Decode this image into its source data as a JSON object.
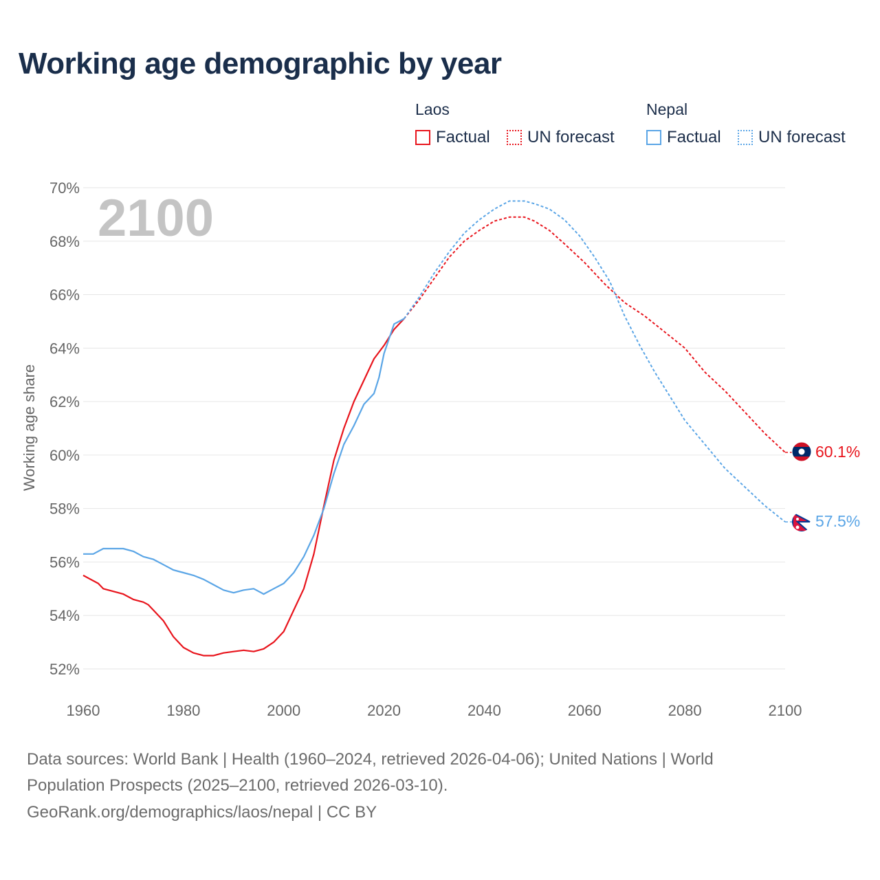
{
  "title": "Working age demographic by year",
  "legend": {
    "groups": [
      {
        "country": "Laos",
        "color": "#e8141c",
        "factual_label": "Factual",
        "forecast_label": "UN forecast"
      },
      {
        "country": "Nepal",
        "color": "#5aa5e6",
        "factual_label": "Factual",
        "forecast_label": "UN forecast"
      }
    ]
  },
  "year_watermark": "2100",
  "chart_data": {
    "type": "line",
    "title": "Working age demographic by year",
    "xlabel": "",
    "ylabel": "Working age share",
    "xlim": [
      1960,
      2100
    ],
    "ylim": [
      52,
      70
    ],
    "x_ticks": [
      "1960",
      "1980",
      "2000",
      "2020",
      "2040",
      "2060",
      "2080",
      "2100"
    ],
    "y_ticks": [
      "52%",
      "54%",
      "56%",
      "58%",
      "60%",
      "62%",
      "64%",
      "66%",
      "68%",
      "70%"
    ],
    "grid": true,
    "factual_range": [
      1960,
      2024
    ],
    "forecast_range": [
      2024,
      2100
    ],
    "series": [
      {
        "name": "Laos",
        "color": "#e8141c",
        "end_label": "60.1%",
        "points": [
          [
            1960,
            55.5
          ],
          [
            1963,
            55.2
          ],
          [
            1964,
            55.0
          ],
          [
            1966,
            54.9
          ],
          [
            1968,
            54.8
          ],
          [
            1970,
            54.6
          ],
          [
            1972,
            54.5
          ],
          [
            1973,
            54.4
          ],
          [
            1975,
            54.0
          ],
          [
            1976,
            53.8
          ],
          [
            1978,
            53.2
          ],
          [
            1980,
            52.8
          ],
          [
            1982,
            52.6
          ],
          [
            1984,
            52.5
          ],
          [
            1986,
            52.5
          ],
          [
            1988,
            52.6
          ],
          [
            1990,
            52.65
          ],
          [
            1992,
            52.7
          ],
          [
            1994,
            52.65
          ],
          [
            1996,
            52.75
          ],
          [
            1998,
            53.0
          ],
          [
            2000,
            53.4
          ],
          [
            2002,
            54.2
          ],
          [
            2004,
            55.0
          ],
          [
            2006,
            56.3
          ],
          [
            2008,
            58.1
          ],
          [
            2010,
            59.8
          ],
          [
            2012,
            61.0
          ],
          [
            2014,
            62.0
          ],
          [
            2016,
            62.8
          ],
          [
            2018,
            63.6
          ],
          [
            2020,
            64.1
          ],
          [
            2022,
            64.7
          ],
          [
            2024,
            65.1
          ],
          [
            2027,
            65.8
          ],
          [
            2030,
            66.6
          ],
          [
            2033,
            67.4
          ],
          [
            2036,
            68.0
          ],
          [
            2039,
            68.4
          ],
          [
            2042,
            68.75
          ],
          [
            2045,
            68.9
          ],
          [
            2048,
            68.9
          ],
          [
            2050,
            68.75
          ],
          [
            2053,
            68.4
          ],
          [
            2056,
            67.9
          ],
          [
            2060,
            67.2
          ],
          [
            2064,
            66.4
          ],
          [
            2068,
            65.7
          ],
          [
            2072,
            65.2
          ],
          [
            2076,
            64.6
          ],
          [
            2080,
            64.0
          ],
          [
            2084,
            63.1
          ],
          [
            2088,
            62.4
          ],
          [
            2092,
            61.6
          ],
          [
            2096,
            60.8
          ],
          [
            2100,
            60.1
          ]
        ]
      },
      {
        "name": "Nepal",
        "color": "#5aa5e6",
        "end_label": "57.5%",
        "points": [
          [
            1960,
            56.3
          ],
          [
            1962,
            56.3
          ],
          [
            1964,
            56.5
          ],
          [
            1966,
            56.5
          ],
          [
            1968,
            56.5
          ],
          [
            1970,
            56.4
          ],
          [
            1972,
            56.2
          ],
          [
            1974,
            56.1
          ],
          [
            1976,
            55.9
          ],
          [
            1978,
            55.7
          ],
          [
            1980,
            55.6
          ],
          [
            1982,
            55.5
          ],
          [
            1984,
            55.35
          ],
          [
            1986,
            55.15
          ],
          [
            1988,
            54.95
          ],
          [
            1990,
            54.85
          ],
          [
            1992,
            54.95
          ],
          [
            1994,
            55.0
          ],
          [
            1996,
            54.8
          ],
          [
            1998,
            55.0
          ],
          [
            2000,
            55.2
          ],
          [
            2002,
            55.6
          ],
          [
            2004,
            56.2
          ],
          [
            2006,
            57.0
          ],
          [
            2008,
            58.0
          ],
          [
            2010,
            59.3
          ],
          [
            2012,
            60.4
          ],
          [
            2014,
            61.1
          ],
          [
            2016,
            61.9
          ],
          [
            2018,
            62.3
          ],
          [
            2019,
            62.9
          ],
          [
            2020,
            63.8
          ],
          [
            2022,
            64.9
          ],
          [
            2024,
            65.1
          ],
          [
            2027,
            65.9
          ],
          [
            2030,
            66.8
          ],
          [
            2033,
            67.6
          ],
          [
            2036,
            68.3
          ],
          [
            2039,
            68.8
          ],
          [
            2042,
            69.2
          ],
          [
            2045,
            69.5
          ],
          [
            2048,
            69.5
          ],
          [
            2050,
            69.4
          ],
          [
            2053,
            69.2
          ],
          [
            2056,
            68.8
          ],
          [
            2059,
            68.2
          ],
          [
            2062,
            67.4
          ],
          [
            2065,
            66.5
          ],
          [
            2068,
            65.2
          ],
          [
            2071,
            64.1
          ],
          [
            2074,
            63.1
          ],
          [
            2077,
            62.2
          ],
          [
            2080,
            61.3
          ],
          [
            2084,
            60.4
          ],
          [
            2088,
            59.5
          ],
          [
            2092,
            58.8
          ],
          [
            2096,
            58.1
          ],
          [
            2100,
            57.5
          ]
        ]
      }
    ]
  },
  "footer": {
    "line1": "Data sources: World Bank | Health (1960–2024, retrieved 2026-04-06); United Nations | World",
    "line2": "Population Prospects (2025–2100, retrieved 2026-03-10).",
    "line3": "GeoRank.org/demographics/laos/nepal | CC BY"
  }
}
